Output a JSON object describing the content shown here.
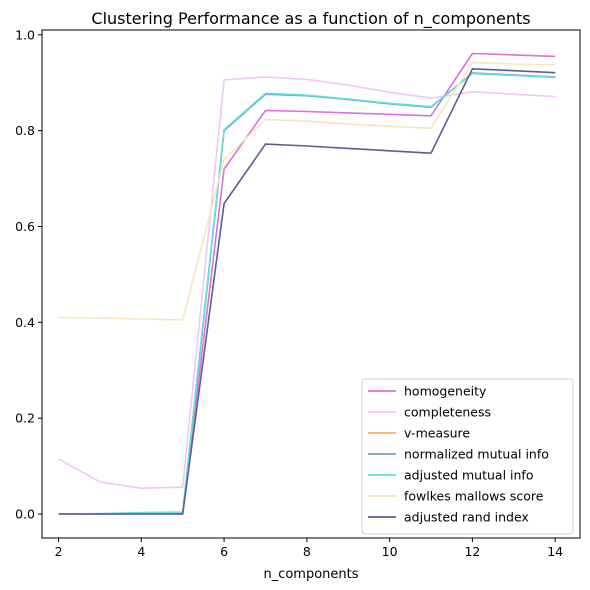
{
  "chart_data": {
    "type": "line",
    "title": "Clustering Performance as a function of n_components",
    "xlabel": "n_components",
    "ylabel": "",
    "x": [
      2,
      3,
      4,
      5,
      6,
      7,
      8,
      9,
      10,
      11,
      12,
      13,
      14
    ],
    "xlim": [
      1.6,
      14.6
    ],
    "ylim": [
      -0.05,
      1.01
    ],
    "xticks": [
      2,
      4,
      6,
      8,
      10,
      12,
      14
    ],
    "yticks": [
      0.0,
      0.2,
      0.4,
      0.6,
      0.8,
      1.0
    ],
    "ytick_labels": [
      "0.0",
      "0.2",
      "0.4",
      "0.6",
      "0.8",
      "1.0"
    ],
    "grid": false,
    "legend_position": "bottom-right",
    "series": [
      {
        "name": "homogeneity",
        "color": "#dd6fe3",
        "values": [
          0.0,
          0.0,
          0.0,
          0.0,
          0.72,
          0.842,
          0.84,
          0.837,
          0.834,
          0.831,
          0.961,
          0.958,
          0.955
        ]
      },
      {
        "name": "completeness",
        "color": "#f0c8f6",
        "values": [
          0.115,
          0.067,
          0.054,
          0.056,
          0.906,
          0.912,
          0.907,
          0.895,
          0.88,
          0.868,
          0.881,
          0.876,
          0.871
        ]
      },
      {
        "name": "v-measure",
        "color": "#f2b072",
        "values": [
          0.0,
          0.0,
          0.001,
          0.002,
          0.8,
          0.876,
          0.873,
          0.865,
          0.856,
          0.849,
          0.92,
          0.916,
          0.912
        ]
      },
      {
        "name": "normalized mutual info",
        "color": "#6b9fd8",
        "values": [
          0.0,
          0.0,
          0.001,
          0.002,
          0.8,
          0.876,
          0.873,
          0.865,
          0.856,
          0.849,
          0.92,
          0.916,
          0.912
        ]
      },
      {
        "name": "adjusted mutual info",
        "color": "#5fe0da",
        "values": [
          0.0,
          0.001,
          0.003,
          0.004,
          0.802,
          0.878,
          0.874,
          0.866,
          0.857,
          0.85,
          0.919,
          0.915,
          0.911
        ]
      },
      {
        "name": "fowlkes mallows score",
        "color": "#f6e6ba",
        "values": [
          0.41,
          0.409,
          0.407,
          0.405,
          0.74,
          0.823,
          0.82,
          0.814,
          0.809,
          0.805,
          0.942,
          0.939,
          0.937
        ]
      },
      {
        "name": "adjusted rand index",
        "color": "#625b8f",
        "values": [
          0.0,
          0.0,
          0.0,
          0.0,
          0.648,
          0.772,
          0.768,
          0.763,
          0.758,
          0.753,
          0.929,
          0.925,
          0.921
        ]
      }
    ]
  }
}
